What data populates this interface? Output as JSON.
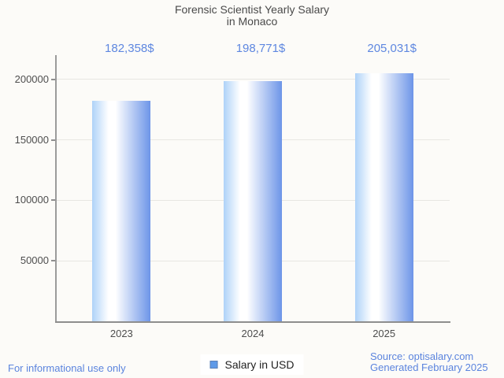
{
  "title": {
    "line1": "Forensic Scientist Yearly Salary",
    "line2": "in Monaco"
  },
  "chart_data": {
    "type": "bar",
    "title": "Forensic Scientist Yearly Salary in Monaco",
    "categories": [
      "2023",
      "2024",
      "2025"
    ],
    "values": [
      182358,
      198771,
      205031
    ],
    "value_labels": [
      "182,358$",
      "198,771$",
      "205,031$"
    ],
    "series_name": "Salary in USD",
    "xlabel": "",
    "ylabel": "",
    "ylim": [
      0,
      220000
    ],
    "yticks": [
      50000,
      100000,
      150000,
      200000
    ],
    "grid": true,
    "legend_position": "bottom"
  },
  "legend": {
    "label": "Salary in USD",
    "swatch_color": "#5f9ae8",
    "swatch_border": "#5a7fb5"
  },
  "footer": {
    "left": "For informational use only",
    "source": "Source: optisalary.com",
    "generated": "Generated February 2025"
  },
  "colors": {
    "background": "#fcfbf8",
    "accent_blue": "#5b84de",
    "value_label_blue": "#5e87e0",
    "bar_gradient_start": "#aed2f8",
    "bar_gradient_mid": "#ffffff",
    "bar_gradient_end": "#6d95e8",
    "grid_line": "#e8e7e2",
    "axis_line": "#8e8e8e",
    "text_dark": "#4a4a4a"
  }
}
